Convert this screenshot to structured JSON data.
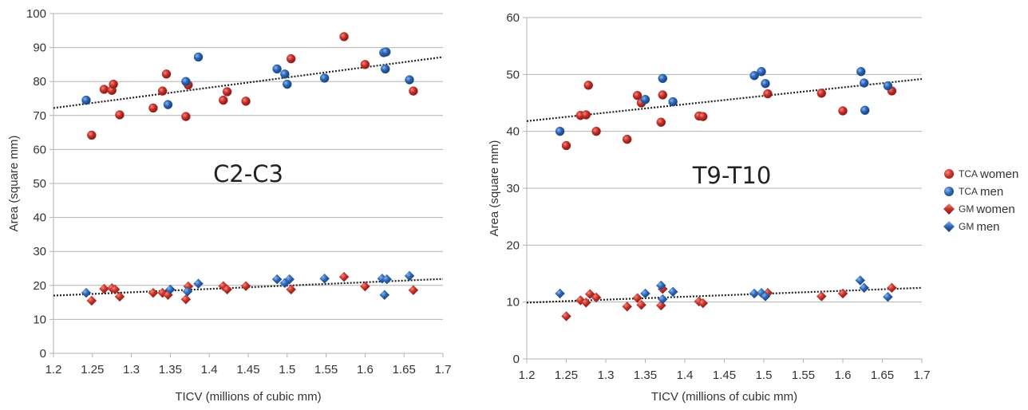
{
  "chart_data": [
    {
      "type": "scatter",
      "title": "C2-C3",
      "xlabel": "TICV (millions of cubic mm)",
      "ylabel": "Area (square mm)",
      "xlim": [
        1.2,
        1.7
      ],
      "ylim": [
        0,
        100
      ],
      "xticks": [
        "1.2",
        "1.25",
        "1.3",
        "1.35",
        "1.4",
        "1.45",
        "1.5",
        "1.55",
        "1.6",
        "1.65",
        "1.7"
      ],
      "yticks": [
        "0",
        "10",
        "20",
        "30",
        "40",
        "50",
        "60",
        "70",
        "80",
        "90",
        "100"
      ],
      "grid": "horizontal",
      "series": [
        {
          "name": "TCA women",
          "marker": "circle",
          "color": "#c0302b",
          "points": [
            [
              1.249,
              64.2
            ],
            [
              1.265,
              77.7
            ],
            [
              1.275,
              77.4
            ],
            [
              1.277,
              79.2
            ],
            [
              1.285,
              70.2
            ],
            [
              1.328,
              72.2
            ],
            [
              1.34,
              77.2
            ],
            [
              1.345,
              82.2
            ],
            [
              1.37,
              69.7
            ],
            [
              1.373,
              79.0
            ],
            [
              1.418,
              74.5
            ],
            [
              1.423,
              77.0
            ],
            [
              1.447,
              74.2
            ],
            [
              1.505,
              86.7
            ],
            [
              1.573,
              93.2
            ],
            [
              1.6,
              85.0
            ],
            [
              1.662,
              77.2
            ]
          ]
        },
        {
          "name": "TCA men",
          "marker": "circle",
          "color": "#2c63b0",
          "points": [
            [
              1.242,
              74.5
            ],
            [
              1.347,
              73.2
            ],
            [
              1.37,
              80.0
            ],
            [
              1.386,
              87.2
            ],
            [
              1.487,
              83.7
            ],
            [
              1.497,
              82.2
            ],
            [
              1.5,
              79.2
            ],
            [
              1.548,
              81.0
            ],
            [
              1.624,
              88.5
            ],
            [
              1.627,
              88.7
            ],
            [
              1.626,
              83.7
            ],
            [
              1.657,
              80.5
            ]
          ]
        },
        {
          "name": "GM women",
          "marker": "diamond",
          "color": "#c0302b",
          "points": [
            [
              1.249,
              15.5
            ],
            [
              1.265,
              19.0
            ],
            [
              1.275,
              19.2
            ],
            [
              1.279,
              18.8
            ],
            [
              1.285,
              16.7
            ],
            [
              1.328,
              17.8
            ],
            [
              1.34,
              17.8
            ],
            [
              1.347,
              17.2
            ],
            [
              1.37,
              15.9
            ],
            [
              1.373,
              19.7
            ],
            [
              1.418,
              19.8
            ],
            [
              1.423,
              18.8
            ],
            [
              1.447,
              19.8
            ],
            [
              1.505,
              18.8
            ],
            [
              1.573,
              22.5
            ],
            [
              1.6,
              19.7
            ],
            [
              1.662,
              18.6
            ]
          ]
        },
        {
          "name": "GM men",
          "marker": "diamond",
          "color": "#2c63b0",
          "points": [
            [
              1.242,
              17.8
            ],
            [
              1.35,
              18.8
            ],
            [
              1.372,
              18.2
            ],
            [
              1.386,
              20.5
            ],
            [
              1.487,
              21.8
            ],
            [
              1.497,
              20.7
            ],
            [
              1.503,
              21.8
            ],
            [
              1.548,
              22.0
            ],
            [
              1.622,
              22.0
            ],
            [
              1.628,
              21.8
            ],
            [
              1.625,
              17.2
            ],
            [
              1.657,
              22.8
            ]
          ]
        }
      ],
      "trendlines": [
        {
          "series": "TCA",
          "from": [
            1.2,
            72.2
          ],
          "to": [
            1.7,
            87.2
          ]
        },
        {
          "series": "GM",
          "from": [
            1.2,
            17.0
          ],
          "to": [
            1.7,
            21.9
          ]
        }
      ]
    },
    {
      "type": "scatter",
      "title": "T9-T10",
      "xlabel": "TICV (millions of cubic mm)",
      "ylabel": "Area (square mm)",
      "xlim": [
        1.2,
        1.7
      ],
      "ylim": [
        0,
        60
      ],
      "xticks": [
        "1.2",
        "1.25",
        "1.3",
        "1.35",
        "1.4",
        "1.45",
        "1.5",
        "1.55",
        "1.6",
        "1.65",
        "1.7"
      ],
      "yticks": [
        "0",
        "10",
        "20",
        "30",
        "40",
        "50",
        "60"
      ],
      "grid": "horizontal",
      "series": [
        {
          "name": "TCA women",
          "marker": "circle",
          "color": "#c0302b",
          "points": [
            [
              1.25,
              37.5
            ],
            [
              1.268,
              42.8
            ],
            [
              1.275,
              42.9
            ],
            [
              1.278,
              48.1
            ],
            [
              1.288,
              40.0
            ],
            [
              1.327,
              38.6
            ],
            [
              1.34,
              46.3
            ],
            [
              1.345,
              45.0
            ],
            [
              1.37,
              41.6
            ],
            [
              1.372,
              46.4
            ],
            [
              1.418,
              42.7
            ],
            [
              1.423,
              42.6
            ],
            [
              1.505,
              46.6
            ],
            [
              1.573,
              46.7
            ],
            [
              1.6,
              43.6
            ],
            [
              1.662,
              47.1
            ]
          ]
        },
        {
          "name": "TCA men",
          "marker": "circle",
          "color": "#2c63b0",
          "points": [
            [
              1.242,
              40.0
            ],
            [
              1.35,
              45.6
            ],
            [
              1.372,
              49.3
            ],
            [
              1.385,
              45.2
            ],
            [
              1.488,
              49.8
            ],
            [
              1.497,
              50.5
            ],
            [
              1.502,
              48.4
            ],
            [
              1.623,
              50.5
            ],
            [
              1.627,
              48.5
            ],
            [
              1.628,
              43.7
            ],
            [
              1.657,
              48.0
            ]
          ]
        },
        {
          "name": "GM women",
          "marker": "diamond",
          "color": "#c0302b",
          "points": [
            [
              1.25,
              7.5
            ],
            [
              1.268,
              10.3
            ],
            [
              1.275,
              9.9
            ],
            [
              1.28,
              11.4
            ],
            [
              1.288,
              10.8
            ],
            [
              1.327,
              9.2
            ],
            [
              1.34,
              10.7
            ],
            [
              1.345,
              9.5
            ],
            [
              1.37,
              9.4
            ],
            [
              1.372,
              12.3
            ],
            [
              1.418,
              10.1
            ],
            [
              1.423,
              9.8
            ],
            [
              1.505,
              11.6
            ],
            [
              1.573,
              11.0
            ],
            [
              1.6,
              11.5
            ],
            [
              1.662,
              12.5
            ]
          ]
        },
        {
          "name": "GM men",
          "marker": "diamond",
          "color": "#2c63b0",
          "points": [
            [
              1.242,
              11.5
            ],
            [
              1.35,
              11.5
            ],
            [
              1.37,
              12.9
            ],
            [
              1.372,
              10.5
            ],
            [
              1.385,
              11.8
            ],
            [
              1.488,
              11.5
            ],
            [
              1.497,
              11.6
            ],
            [
              1.502,
              11.0
            ],
            [
              1.622,
              13.8
            ],
            [
              1.627,
              12.5
            ],
            [
              1.657,
              10.9
            ]
          ]
        }
      ],
      "trendlines": [
        {
          "series": "TCA",
          "from": [
            1.2,
            41.8
          ],
          "to": [
            1.7,
            49.2
          ]
        },
        {
          "series": "GM",
          "from": [
            1.2,
            9.9
          ],
          "to": [
            1.7,
            12.5
          ]
        }
      ]
    }
  ],
  "legend": {
    "placement": "right",
    "items": [
      {
        "prefix": "TCA",
        "label": "women",
        "marker": "circle",
        "color": "#c0302b"
      },
      {
        "prefix": "TCA",
        "label": "men",
        "marker": "circle",
        "color": "#2c63b0"
      },
      {
        "prefix": "GM",
        "label": "women",
        "marker": "diamond",
        "color": "#c0302b"
      },
      {
        "prefix": "GM",
        "label": "men",
        "marker": "diamond",
        "color": "#2c63b0"
      }
    ]
  }
}
